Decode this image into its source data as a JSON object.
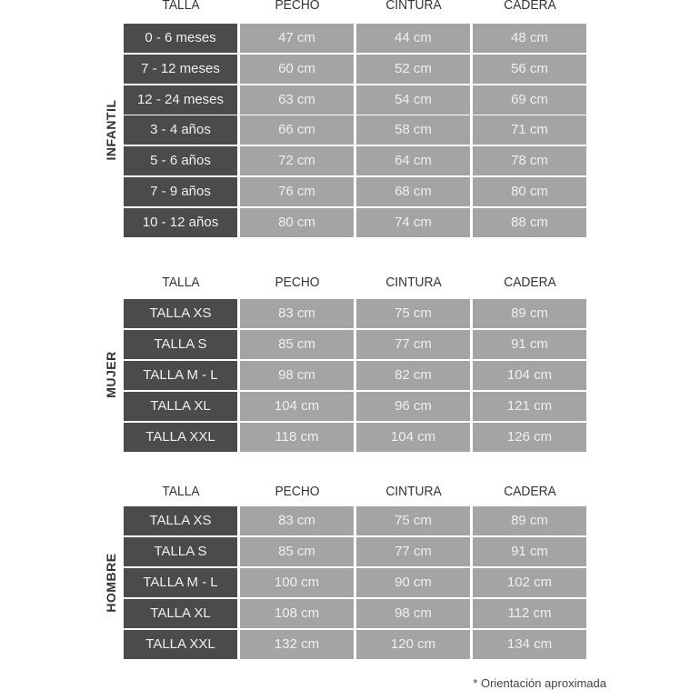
{
  "headers": [
    "TALLA",
    "PECHO",
    "CINTURA",
    "CADERA"
  ],
  "sections": [
    {
      "label": "INFANTIL",
      "rows": [
        [
          "0 - 6 meses",
          "47 cm",
          "44 cm",
          "48 cm"
        ],
        [
          "7 - 12 meses",
          "60 cm",
          "52 cm",
          "56 cm"
        ],
        [
          "12 - 24 meses",
          "63 cm",
          "54 cm",
          "69 cm"
        ],
        [
          "3 - 4 años",
          "66 cm",
          "58 cm",
          "71 cm"
        ],
        [
          "5 - 6 años",
          "72 cm",
          "64 cm",
          "78 cm"
        ],
        [
          "7 - 9 años",
          "76 cm",
          "68 cm",
          "80 cm"
        ],
        [
          "10 - 12 años",
          "80 cm",
          "74 cm",
          "88 cm"
        ]
      ]
    },
    {
      "label": "MUJER",
      "rows": [
        [
          "TALLA XS",
          "83 cm",
          "75 cm",
          "89 cm"
        ],
        [
          "TALLA S",
          "85 cm",
          "77 cm",
          "91 cm"
        ],
        [
          "TALLA M - L",
          "98 cm",
          "82 cm",
          "104 cm"
        ],
        [
          "TALLA XL",
          "104 cm",
          "96 cm",
          "121 cm"
        ],
        [
          "TALLA XXL",
          "118 cm",
          "104 cm",
          "126 cm"
        ]
      ]
    },
    {
      "label": "HOMBRE",
      "rows": [
        [
          "TALLA XS",
          "83 cm",
          "75 cm",
          "89 cm"
        ],
        [
          "TALLA S",
          "85 cm",
          "77 cm",
          "91 cm"
        ],
        [
          "TALLA M - L",
          "100 cm",
          "90 cm",
          "102 cm"
        ],
        [
          "TALLA XL",
          "108 cm",
          "98 cm",
          "112 cm"
        ],
        [
          "TALLA XXL",
          "132 cm",
          "120 cm",
          "134 cm"
        ]
      ]
    }
  ],
  "footnote": "* Orientación aproximada",
  "colors": {
    "size_cell": "#4b4b4b",
    "value_cell": "#a4a4a4"
  }
}
